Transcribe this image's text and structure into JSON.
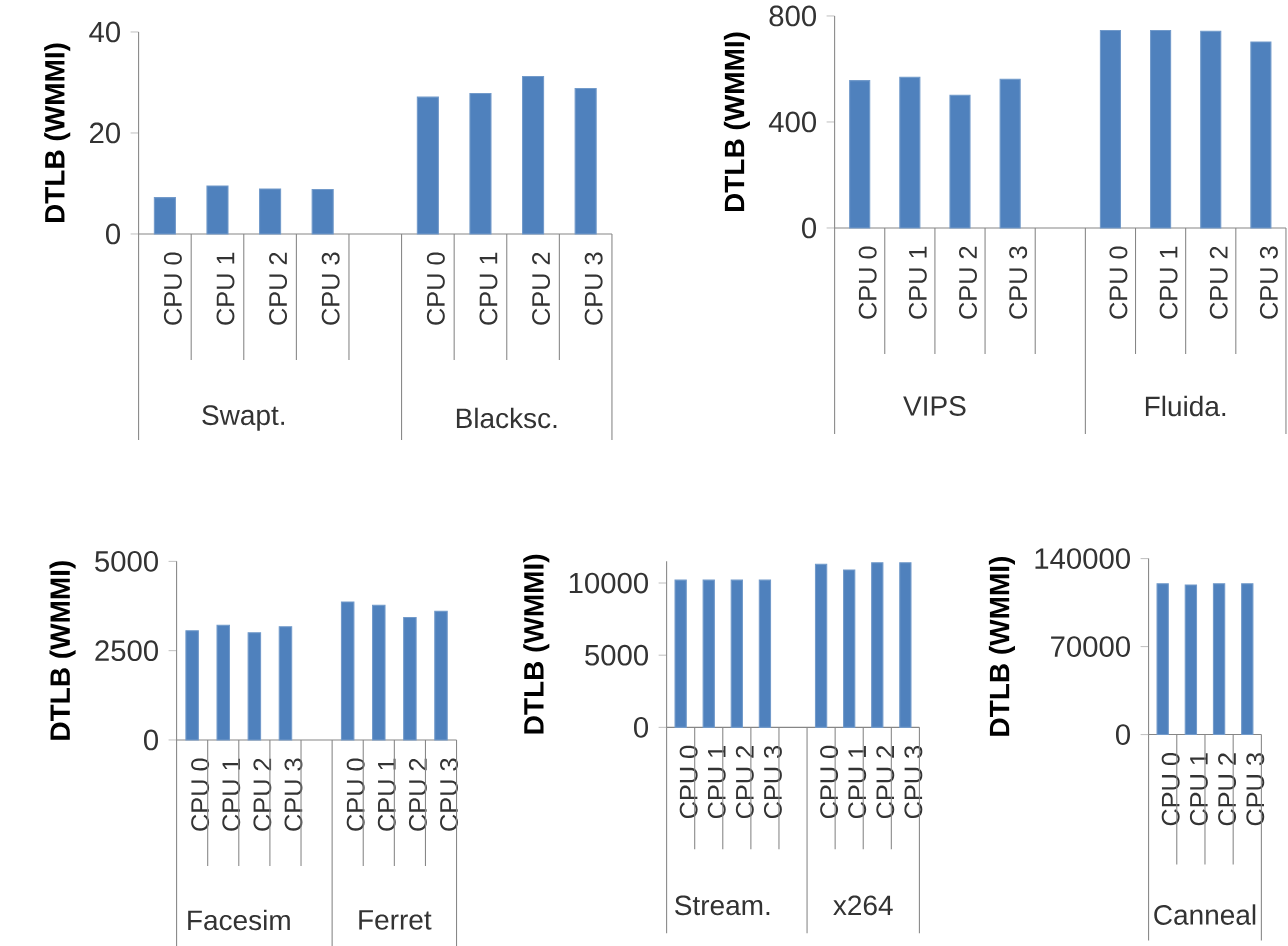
{
  "chart_data": [
    {
      "type": "bar",
      "ylabel": "DTLB (WMMI)",
      "categories": [
        "CPU 0",
        "CPU 1",
        "CPU 2",
        "CPU 3",
        null,
        "CPU 0",
        "CPU 1",
        "CPU 2",
        "CPU 3"
      ],
      "values": [
        7.2,
        9.5,
        8.9,
        8.8,
        null,
        27.1,
        27.8,
        31.2,
        28.8
      ],
      "color": "#4f81bd",
      "ylim": [
        0,
        40
      ],
      "yticks": [
        0,
        20,
        40
      ],
      "annotations": [
        "Swapt.",
        "Blacksc."
      ]
    },
    {
      "type": "bar",
      "ylabel": "DTLB (WMMI)",
      "categories": [
        "CPU 0",
        "CPU 1",
        "CPU 2",
        "CPU 3",
        null,
        "CPU 0",
        "CPU 1",
        "CPU 2",
        "CPU 3"
      ],
      "values": [
        556,
        569,
        501,
        561,
        null,
        745,
        745,
        742,
        702
      ],
      "color": "#4f81bd",
      "ylim": [
        0,
        800
      ],
      "yticks": [
        0,
        400,
        800
      ],
      "annotations": [
        "VIPS",
        "Fluida."
      ]
    },
    {
      "type": "bar",
      "ylabel": "DTLB (WMMI)",
      "categories": [
        "CPU 0",
        "CPU 1",
        "CPU 2",
        "CPU 3",
        null,
        "CPU 0",
        "CPU 1",
        "CPU 2",
        "CPU 3"
      ],
      "values": [
        3060,
        3210,
        3000,
        3170,
        null,
        3860,
        3770,
        3430,
        3600
      ],
      "color": "#4f81bd",
      "ylim": [
        0,
        5000
      ],
      "yticks": [
        0,
        2500,
        5000
      ],
      "annotations": [
        "Facesim",
        "Ferret"
      ]
    },
    {
      "type": "bar",
      "ylabel": "DTLB (WMMI)",
      "categories": [
        "CPU 0",
        "CPU 1",
        "CPU 2",
        "CPU 3",
        null,
        "CPU 0",
        "CPU 1",
        "CPU 2",
        "CPU 3"
      ],
      "values": [
        10200,
        10200,
        10200,
        10200,
        null,
        11300,
        10900,
        11400,
        11400
      ],
      "color": "#4f81bd",
      "ylim": [
        0,
        11500
      ],
      "yticks": [
        0,
        5000,
        10000
      ],
      "annotations": [
        "Stream.",
        "x264"
      ]
    },
    {
      "type": "bar",
      "ylabel": "DTLB (WMMI)",
      "categories": [
        "CPU 0",
        "CPU 1",
        "CPU 2",
        "CPU 3"
      ],
      "values": [
        120000,
        119000,
        120000,
        120000
      ],
      "color": "#4f81bd",
      "ylim": [
        0,
        140000
      ],
      "yticks": [
        0,
        70000,
        140000
      ],
      "annotations": [
        "Canneal"
      ]
    }
  ]
}
